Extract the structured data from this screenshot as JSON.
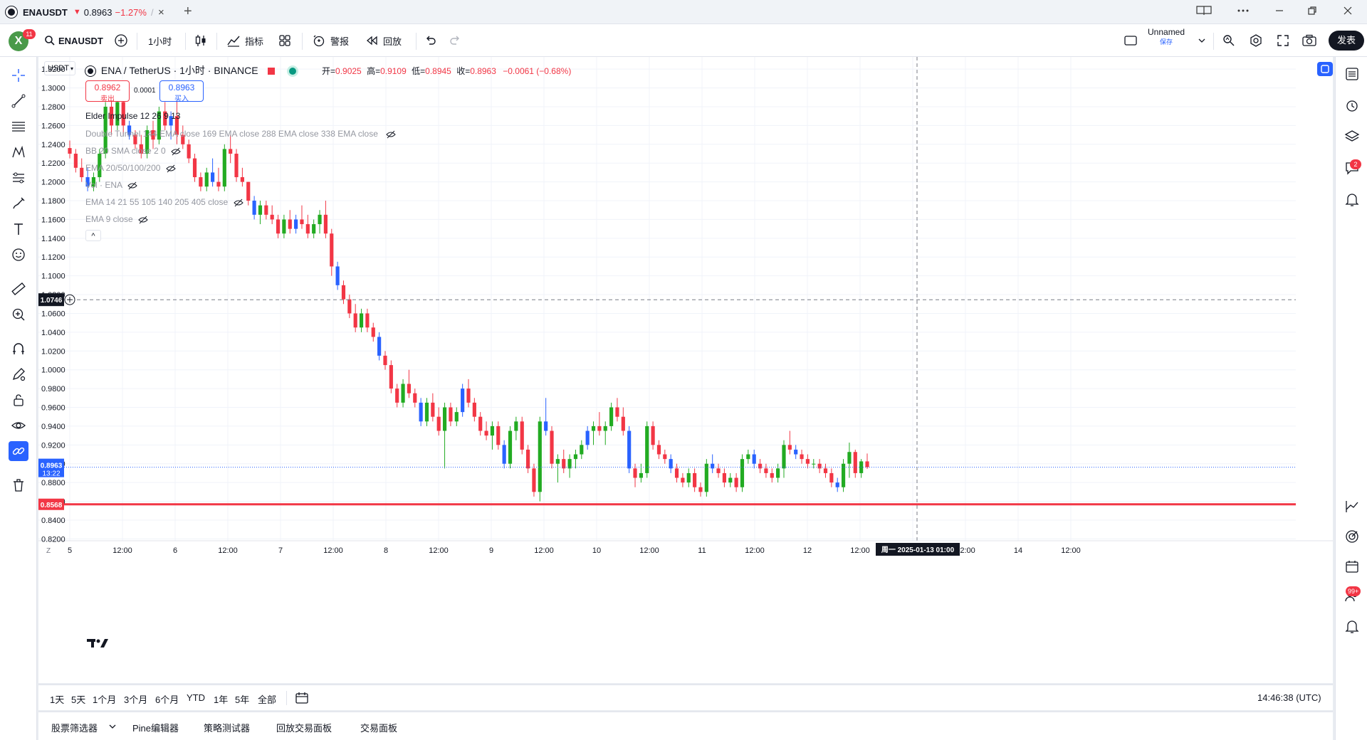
{
  "window": {
    "tab_symbol": "ENAUSDT",
    "tab_arrow": "▼",
    "tab_price": "0.8963",
    "tab_change": "−1.27%",
    "tab_sep": "/",
    "close_glyph": "×",
    "add_tab_glyph": "+"
  },
  "toolbar": {
    "avatar_letter": "X",
    "avatar_badge": "11",
    "symbol": "ENAUSDT",
    "interval": "1小时",
    "indicators": "指标",
    "alerts": "警报",
    "replay": "回放",
    "layout_name": "Unnamed",
    "layout_sub": "保存",
    "publish": "发表"
  },
  "chart": {
    "currency_select": "USDT",
    "title": "ENA / TetherUS · 1小时 · BINANCE",
    "ohlc": {
      "open_label": "开=",
      "open": "0.9025",
      "high_label": "高=",
      "high": "0.9109",
      "low_label": "低=",
      "low": "0.8945",
      "close_label": "收=",
      "close": "0.8963",
      "change": "−0.0061 (−0.68%)"
    },
    "sell_price": "0.8962",
    "sell_label": "卖出",
    "spread": "0.0001",
    "buy_price": "0.8963",
    "buy_label": "买入",
    "indicators": [
      "Elder Impulse 12 26 9 13",
      "Double Tunnel 144 EMA close 169 EMA close 288 EMA close 338 EMA close",
      "BB 20 SMA close 2 0",
      "EMA 20/50/100/200",
      "Vol · ENA",
      "EMA 14 21 55 105 140 205 405 close",
      "EMA 9 close"
    ],
    "collapse_glyph": "^",
    "crosshair_price": "1.0746",
    "current_price": "0.8963",
    "countdown": "13:22",
    "line_price": "0.8568",
    "crosshair_time": "周一 2025-01-13  01:00",
    "y_axis_ticks": [
      "1.3200",
      "1.3000",
      "1.2800",
      "1.2600",
      "1.2400",
      "1.2200",
      "1.2000",
      "1.1800",
      "1.1600",
      "1.1400",
      "1.1200",
      "1.1000",
      "1.0800",
      "1.0600",
      "1.0400",
      "1.0200",
      "1.0000",
      "0.9800",
      "0.9600",
      "0.9400",
      "0.9200",
      "0.9000",
      "0.8800",
      "0.8600",
      "0.8400",
      "0.8200"
    ],
    "x_axis_ticks": [
      "5",
      "12:00",
      "6",
      "12:00",
      "7",
      "12:00",
      "8",
      "12:00",
      "9",
      "12:00",
      "10",
      "12:00",
      "11",
      "12:00",
      "12",
      "12:00",
      "13",
      "12:00",
      "14",
      "12:00"
    ],
    "z_label": "Z",
    "colors": {
      "up": "#089981",
      "down": "#f23645",
      "impulse_up": "#22ab22",
      "impulse_down": "#f23645",
      "impulse_neutral": "#2962ff",
      "support_line": "#f23645",
      "accent": "#2962ff"
    }
  },
  "bottom": {
    "ranges": [
      "1天",
      "5天",
      "1个月",
      "3个月",
      "6个月",
      "YTD",
      "1年",
      "5年",
      "全部"
    ],
    "clock": "14:46:38 (UTC)"
  },
  "panels": [
    "股票筛选器",
    "Pine编辑器",
    "策略测试器",
    "回放交易面板",
    "交易面板"
  ],
  "right_badges": {
    "chat": "2",
    "calendar": "99+"
  },
  "chart_data": {
    "type": "candlestick",
    "title": "ENA / TetherUS · 1小时 · BINANCE",
    "ylim": [
      0.82,
      1.33
    ],
    "x_categories": [
      "5",
      "12:00",
      "6",
      "12:00",
      "7",
      "12:00",
      "8",
      "12:00",
      "9",
      "12:00",
      "10",
      "12:00",
      "11",
      "12:00",
      "12",
      "12:00",
      "13"
    ],
    "candles": [
      [
        1.236,
        1.244,
        1.225,
        1.23
      ],
      [
        1.23,
        1.235,
        1.21,
        1.215
      ],
      [
        1.215,
        1.225,
        1.2,
        1.205
      ],
      [
        1.205,
        1.215,
        1.19,
        1.195
      ],
      [
        1.195,
        1.21,
        1.19,
        1.205
      ],
      [
        1.205,
        1.235,
        1.2,
        1.23
      ],
      [
        1.23,
        1.285,
        1.225,
        1.28
      ],
      [
        1.28,
        1.295,
        1.25,
        1.26
      ],
      [
        1.26,
        1.29,
        1.255,
        1.285
      ],
      [
        1.285,
        1.3,
        1.25,
        1.26
      ],
      [
        1.26,
        1.265,
        1.245,
        1.25
      ],
      [
        1.25,
        1.255,
        1.235,
        1.24
      ],
      [
        1.24,
        1.25,
        1.225,
        1.23
      ],
      [
        1.23,
        1.26,
        1.225,
        1.255
      ],
      [
        1.255,
        1.265,
        1.235,
        1.245
      ],
      [
        1.245,
        1.28,
        1.24,
        1.275
      ],
      [
        1.275,
        1.285,
        1.255,
        1.26
      ],
      [
        1.26,
        1.275,
        1.245,
        1.27
      ],
      [
        1.27,
        1.29,
        1.24,
        1.25
      ],
      [
        1.25,
        1.26,
        1.235,
        1.24
      ],
      [
        1.24,
        1.245,
        1.22,
        1.225
      ],
      [
        1.225,
        1.23,
        1.2,
        1.205
      ],
      [
        1.205,
        1.21,
        1.19,
        1.195
      ],
      [
        1.195,
        1.215,
        1.19,
        1.21
      ],
      [
        1.21,
        1.225,
        1.195,
        1.2
      ],
      [
        1.2,
        1.215,
        1.19,
        1.195
      ],
      [
        1.195,
        1.24,
        1.19,
        1.235
      ],
      [
        1.235,
        1.25,
        1.22,
        1.23
      ],
      [
        1.23,
        1.235,
        1.2,
        1.205
      ],
      [
        1.205,
        1.215,
        1.195,
        1.2
      ],
      [
        1.2,
        1.2,
        1.175,
        1.18
      ],
      [
        1.18,
        1.185,
        1.16,
        1.165
      ],
      [
        1.165,
        1.18,
        1.155,
        1.175
      ],
      [
        1.175,
        1.18,
        1.16,
        1.165
      ],
      [
        1.165,
        1.175,
        1.155,
        1.16
      ],
      [
        1.16,
        1.165,
        1.14,
        1.145
      ],
      [
        1.145,
        1.165,
        1.14,
        1.16
      ],
      [
        1.16,
        1.17,
        1.145,
        1.15
      ],
      [
        1.15,
        1.165,
        1.145,
        1.16
      ],
      [
        1.16,
        1.175,
        1.15,
        1.155
      ],
      [
        1.155,
        1.165,
        1.14,
        1.145
      ],
      [
        1.145,
        1.16,
        1.14,
        1.155
      ],
      [
        1.155,
        1.17,
        1.145,
        1.165
      ],
      [
        1.165,
        1.18,
        1.14,
        1.145
      ],
      [
        1.145,
        1.15,
        1.1,
        1.11
      ],
      [
        1.11,
        1.115,
        1.085,
        1.09
      ],
      [
        1.09,
        1.095,
        1.07,
        1.075
      ],
      [
        1.075,
        1.08,
        1.055,
        1.06
      ],
      [
        1.06,
        1.07,
        1.04,
        1.045
      ],
      [
        1.045,
        1.065,
        1.04,
        1.06
      ],
      [
        1.06,
        1.065,
        1.04,
        1.045
      ],
      [
        1.045,
        1.05,
        1.03,
        1.035
      ],
      [
        1.035,
        1.04,
        1.01,
        1.015
      ],
      [
        1.015,
        1.02,
        1.0,
        1.005
      ],
      [
        1.005,
        1.01,
        0.975,
        0.98
      ],
      [
        0.98,
        0.985,
        0.96,
        0.965
      ],
      [
        0.965,
        0.99,
        0.96,
        0.985
      ],
      [
        0.985,
        1.0,
        0.97,
        0.975
      ],
      [
        0.975,
        0.98,
        0.96,
        0.965
      ],
      [
        0.965,
        0.97,
        0.94,
        0.945
      ],
      [
        0.945,
        0.97,
        0.94,
        0.965
      ],
      [
        0.965,
        0.975,
        0.945,
        0.95
      ],
      [
        0.95,
        0.96,
        0.93,
        0.935
      ],
      [
        0.935,
        0.965,
        0.895,
        0.96
      ],
      [
        0.96,
        0.965,
        0.94,
        0.945
      ],
      [
        0.945,
        0.96,
        0.94,
        0.955
      ],
      [
        0.955,
        0.985,
        0.95,
        0.98
      ],
      [
        0.98,
        0.99,
        0.96,
        0.965
      ],
      [
        0.965,
        0.97,
        0.945,
        0.95
      ],
      [
        0.95,
        0.955,
        0.93,
        0.935
      ],
      [
        0.935,
        0.945,
        0.925,
        0.93
      ],
      [
        0.93,
        0.945,
        0.915,
        0.94
      ],
      [
        0.94,
        0.945,
        0.915,
        0.92
      ],
      [
        0.92,
        0.925,
        0.895,
        0.9
      ],
      [
        0.9,
        0.94,
        0.895,
        0.935
      ],
      [
        0.935,
        0.95,
        0.925,
        0.945
      ],
      [
        0.945,
        0.95,
        0.91,
        0.915
      ],
      [
        0.915,
        0.92,
        0.89,
        0.895
      ],
      [
        0.895,
        0.9,
        0.865,
        0.87
      ],
      [
        0.87,
        0.95,
        0.86,
        0.945
      ],
      [
        0.945,
        0.97,
        0.93,
        0.935
      ],
      [
        0.935,
        0.94,
        0.895,
        0.9
      ],
      [
        0.9,
        0.91,
        0.88,
        0.905
      ],
      [
        0.905,
        0.915,
        0.89,
        0.895
      ],
      [
        0.895,
        0.91,
        0.885,
        0.905
      ],
      [
        0.905,
        0.915,
        0.895,
        0.91
      ],
      [
        0.91,
        0.925,
        0.905,
        0.92
      ],
      [
        0.92,
        0.94,
        0.915,
        0.935
      ],
      [
        0.935,
        0.945,
        0.92,
        0.94
      ],
      [
        0.94,
        0.955,
        0.93,
        0.935
      ],
      [
        0.935,
        0.945,
        0.92,
        0.94
      ],
      [
        0.94,
        0.965,
        0.935,
        0.96
      ],
      [
        0.96,
        0.97,
        0.945,
        0.95
      ],
      [
        0.95,
        0.96,
        0.93,
        0.935
      ],
      [
        0.935,
        0.94,
        0.89,
        0.895
      ],
      [
        0.895,
        0.9,
        0.875,
        0.885
      ],
      [
        0.885,
        0.9,
        0.88,
        0.89
      ],
      [
        0.89,
        0.945,
        0.885,
        0.94
      ],
      [
        0.94,
        0.945,
        0.915,
        0.92
      ],
      [
        0.92,
        0.925,
        0.905,
        0.91
      ],
      [
        0.91,
        0.915,
        0.9,
        0.905
      ],
      [
        0.905,
        0.91,
        0.89,
        0.895
      ],
      [
        0.895,
        0.9,
        0.88,
        0.885
      ],
      [
        0.885,
        0.89,
        0.875,
        0.88
      ],
      [
        0.88,
        0.895,
        0.875,
        0.89
      ],
      [
        0.89,
        0.895,
        0.87,
        0.875
      ],
      [
        0.875,
        0.88,
        0.865,
        0.87
      ],
      [
        0.87,
        0.905,
        0.865,
        0.9
      ],
      [
        0.9,
        0.91,
        0.89,
        0.895
      ],
      [
        0.895,
        0.9,
        0.885,
        0.89
      ],
      [
        0.89,
        0.895,
        0.875,
        0.88
      ],
      [
        0.88,
        0.89,
        0.875,
        0.885
      ],
      [
        0.885,
        0.89,
        0.87,
        0.875
      ],
      [
        0.875,
        0.91,
        0.87,
        0.905
      ],
      [
        0.905,
        0.915,
        0.9,
        0.91
      ],
      [
        0.91,
        0.915,
        0.895,
        0.9
      ],
      [
        0.9,
        0.905,
        0.89,
        0.895
      ],
      [
        0.895,
        0.9,
        0.885,
        0.89
      ],
      [
        0.89,
        0.895,
        0.88,
        0.885
      ],
      [
        0.885,
        0.9,
        0.88,
        0.895
      ],
      [
        0.895,
        0.925,
        0.885,
        0.92
      ],
      [
        0.92,
        0.935,
        0.91,
        0.915
      ],
      [
        0.915,
        0.92,
        0.905,
        0.91
      ],
      [
        0.91,
        0.915,
        0.9,
        0.905
      ],
      [
        0.905,
        0.91,
        0.895,
        0.9
      ],
      [
        0.9,
        0.905,
        0.895,
        0.9
      ],
      [
        0.9,
        0.905,
        0.89,
        0.895
      ],
      [
        0.895,
        0.9,
        0.885,
        0.89
      ],
      [
        0.89,
        0.895,
        0.875,
        0.88
      ],
      [
        0.88,
        0.885,
        0.87,
        0.875
      ],
      [
        0.875,
        0.905,
        0.87,
        0.9
      ],
      [
        0.9,
        0.9225,
        0.885,
        0.9125
      ],
      [
        0.9125,
        0.915,
        0.885,
        0.89
      ],
      [
        0.89,
        0.905,
        0.885,
        0.9025
      ],
      [
        0.9025,
        0.9109,
        0.8945,
        0.8963
      ]
    ],
    "current_price": 0.8963,
    "horizontal_line": 0.8568,
    "crosshair_price": 1.0746
  }
}
